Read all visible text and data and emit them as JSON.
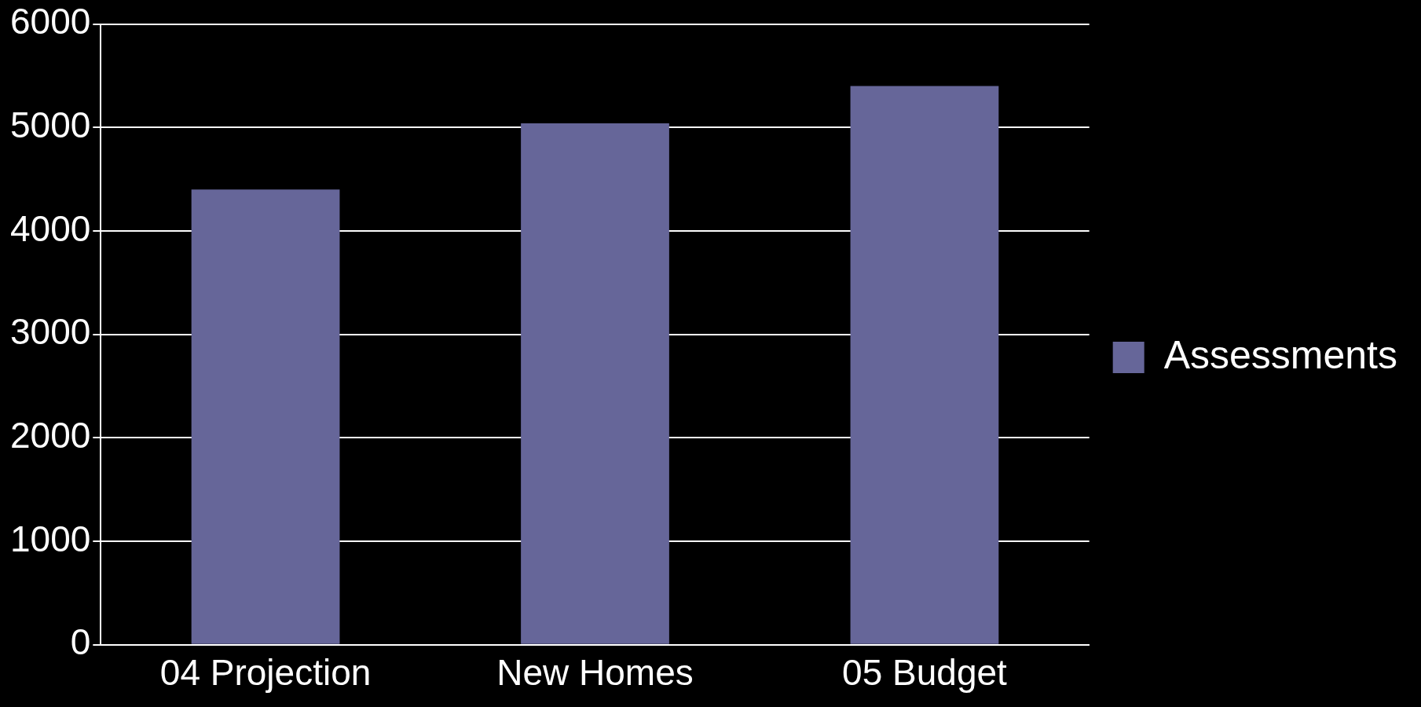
{
  "chart_data": {
    "type": "bar",
    "categories": [
      "04 Projection",
      "New Homes",
      "05 Budget"
    ],
    "series": [
      {
        "name": "Assessments",
        "color": "#666699",
        "values": [
          4400,
          5040,
          5400
        ]
      }
    ],
    "ylim": [
      0,
      6000
    ],
    "yticks": [
      0,
      1000,
      2000,
      3000,
      4000,
      5000,
      6000
    ],
    "grid": "y",
    "legend": "right"
  }
}
